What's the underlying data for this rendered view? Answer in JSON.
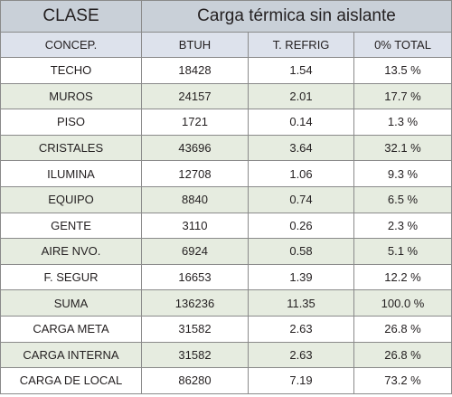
{
  "header": {
    "clase": "CLASE",
    "title": "Carga térmica sin aislante"
  },
  "columns": [
    "CONCEP.",
    "BTUH",
    "T. REFRIG",
    "0% TOTAL"
  ],
  "rows": [
    {
      "concep": "TECHO",
      "btuh": "18428",
      "refrig": "1.54",
      "total": "13.5 %"
    },
    {
      "concep": "MUROS",
      "btuh": "24157",
      "refrig": "2.01",
      "total": "17.7 %"
    },
    {
      "concep": "PISO",
      "btuh": "1721",
      "refrig": "0.14",
      "total": "1.3 %"
    },
    {
      "concep": "CRISTALES",
      "btuh": "43696",
      "refrig": "3.64",
      "total": "32.1 %"
    },
    {
      "concep": "ILUMINA",
      "btuh": "12708",
      "refrig": "1.06",
      "total": "9.3 %"
    },
    {
      "concep": "EQUIPO",
      "btuh": "8840",
      "refrig": "0.74",
      "total": "6.5 %"
    },
    {
      "concep": "GENTE",
      "btuh": "3110",
      "refrig": "0.26",
      "total": "2.3 %"
    },
    {
      "concep": "AIRE NVO.",
      "btuh": "6924",
      "refrig": "0.58",
      "total": "5.1 %"
    },
    {
      "concep": "F. SEGUR",
      "btuh": "16653",
      "refrig": "1.39",
      "total": "12.2 %"
    },
    {
      "concep": "SUMA",
      "btuh": "136236",
      "refrig": "11.35",
      "total": "100.0 %"
    },
    {
      "concep": "CARGA META",
      "btuh": "31582",
      "refrig": "2.63",
      "total": "26.8 %"
    },
    {
      "concep": "CARGA INTERNA",
      "btuh": "31582",
      "refrig": "2.63",
      "total": "26.8 %"
    },
    {
      "concep": "CARGA DE LOCAL",
      "btuh": "86280",
      "refrig": "7.19",
      "total": "73.2 %"
    }
  ]
}
